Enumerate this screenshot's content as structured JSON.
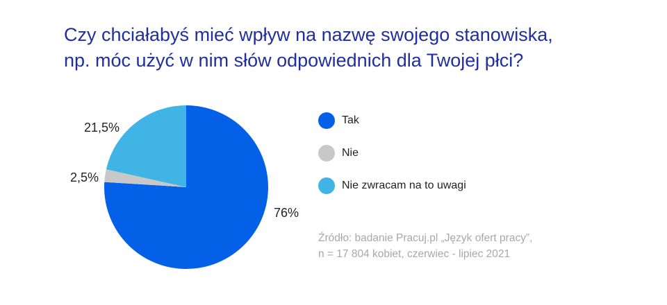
{
  "title": {
    "line1": "Czy chciałabyś mieć wpływ na nazwę swojego stanowiska,",
    "line2": "np. móc użyć w nim słów odpowiednich dla Twojej płci?"
  },
  "chart_data": {
    "type": "pie",
    "title": "Czy chciałabyś mieć wpływ na nazwę swojego stanowiska, np. móc użyć w nim słów odpowiednich dla Twojej płci?",
    "slices": [
      {
        "label": "Tak",
        "value": 76,
        "display": "76%",
        "color": "#0560e8"
      },
      {
        "label": "Nie",
        "value": 2.5,
        "display": "2,5%",
        "color": "#c8c8c8"
      },
      {
        "label": "Nie zwracam na to uwagi",
        "value": 21.5,
        "display": "21,5%",
        "color": "#40b4e5"
      }
    ],
    "legend_position": "right"
  },
  "source": {
    "line1": "Źródło: badanie Pracuj.pl „Język ofert pracy”,",
    "line2": "n = 17 804 kobiet, czerwiec - lipiec 2021"
  }
}
